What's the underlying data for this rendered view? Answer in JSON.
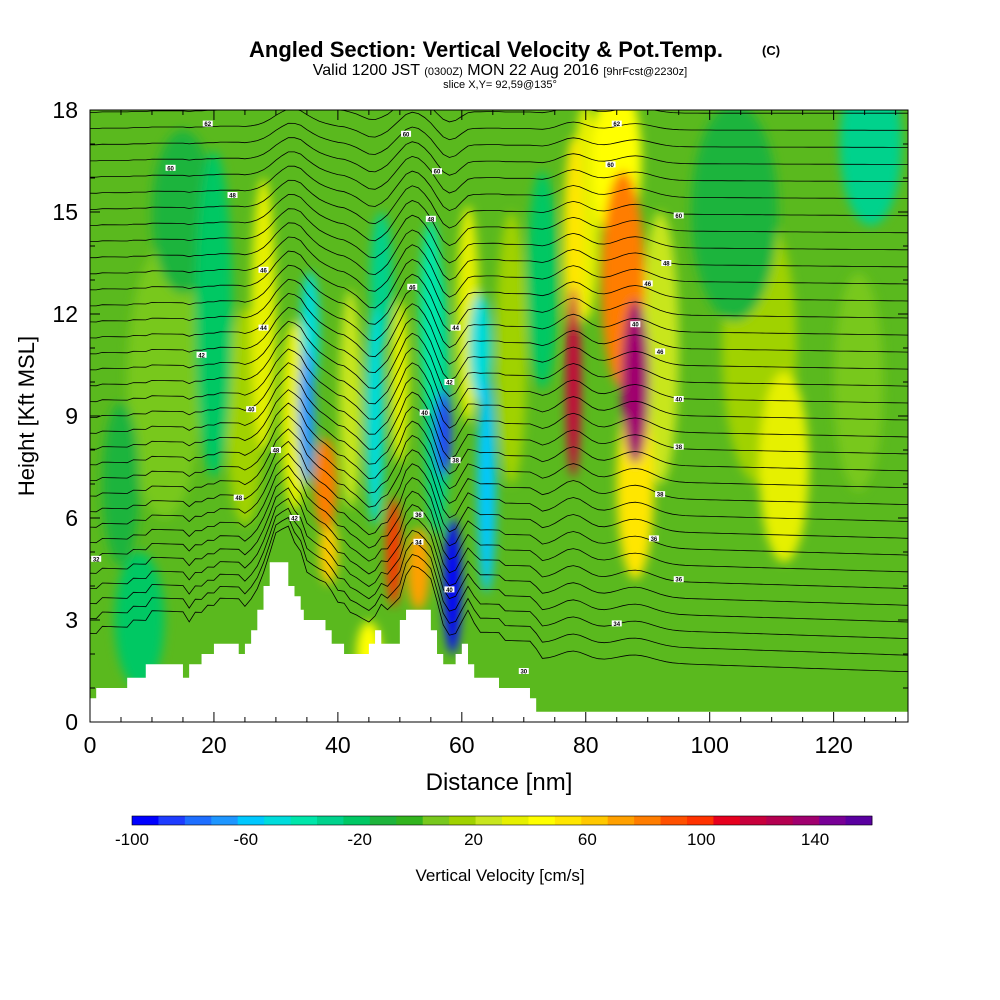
{
  "chart_data": {
    "type": "heatmap",
    "title": "Angled Section: Vertical Velocity & Pot.Temp.",
    "title_mark": "(C)",
    "subtitle_pre": "Valid 1200 JST",
    "subtitle_z": "(0300Z)",
    "subtitle_post": "MON 22 Aug 2016",
    "subtitle_fcst": "[9hrFcst@2230z]",
    "slice_label": "slice X,Y= 92,59@135°",
    "xlabel": "Distance [nm]",
    "ylabel": "Height [Kft MSL]",
    "xlim": [
      0,
      132
    ],
    "ylim": [
      0,
      18
    ],
    "x_ticks": [
      0,
      20,
      40,
      60,
      80,
      100,
      120
    ],
    "y_ticks": [
      0,
      3,
      6,
      9,
      12,
      15,
      18
    ],
    "colorbar": {
      "label": "Vertical Velocity [cm/s]",
      "min": -100,
      "max": 160,
      "ticks": [
        -100,
        -60,
        -20,
        20,
        60,
        100,
        140
      ],
      "colors": [
        "#0000ff",
        "#1e3cff",
        "#1e6eff",
        "#1e96ff",
        "#00c8ff",
        "#00dcdc",
        "#00e6aa",
        "#00d28c",
        "#00c864",
        "#1eb43c",
        "#32b41e",
        "#78c81e",
        "#a0d200",
        "#c8e61e",
        "#e6f000",
        "#ffff00",
        "#ffe600",
        "#ffc800",
        "#ffa000",
        "#ff7d00",
        "#ff5000",
        "#ff3200",
        "#e6001e",
        "#c8003c",
        "#b40050",
        "#a0006e",
        "#780096",
        "#5a00a0"
      ]
    },
    "velocity_features": [
      {
        "x": 35,
        "y": 9,
        "w": 1.3,
        "h": 2.5,
        "v": -70
      },
      {
        "x": 35.5,
        "y": 11.5,
        "w": 1.5,
        "h": 2.2,
        "v": -45
      },
      {
        "x": 33,
        "y": 9,
        "w": 2.2,
        "h": 3.5,
        "v": 35
      },
      {
        "x": 38,
        "y": 7,
        "w": 1.8,
        "h": 1.7,
        "v": 85
      },
      {
        "x": 38.5,
        "y": 5,
        "w": 1.5,
        "h": 1.2,
        "v": 60
      },
      {
        "x": 42,
        "y": 9.5,
        "w": 1.8,
        "h": 4,
        "v": 25
      },
      {
        "x": 46,
        "y": 9,
        "w": 1.5,
        "h": 4,
        "v": -50
      },
      {
        "x": 47,
        "y": 13,
        "w": 1.8,
        "h": 2.5,
        "v": -30
      },
      {
        "x": 49,
        "y": 5,
        "w": 1.2,
        "h": 2,
        "v": 95
      },
      {
        "x": 50,
        "y": 10,
        "w": 1.4,
        "h": 3,
        "v": 35
      },
      {
        "x": 53,
        "y": 4.5,
        "w": 1.8,
        "h": 1.5,
        "v": 70
      },
      {
        "x": 55,
        "y": 12,
        "w": 1.8,
        "h": 3.5,
        "v": -40
      },
      {
        "x": 57,
        "y": 8.5,
        "w": 1.3,
        "h": 1.6,
        "v": -85
      },
      {
        "x": 58.5,
        "y": 4,
        "w": 1.4,
        "h": 2.5,
        "v": -100
      },
      {
        "x": 56,
        "y": 9.5,
        "w": 2.2,
        "h": 5,
        "v": -30
      },
      {
        "x": 61,
        "y": 12,
        "w": 1.8,
        "h": 4,
        "v": 30
      },
      {
        "x": 64,
        "y": 7,
        "w": 1.5,
        "h": 4,
        "v": -60
      },
      {
        "x": 63,
        "y": 11,
        "w": 1.8,
        "h": 2,
        "v": -45
      },
      {
        "x": 68,
        "y": 11,
        "w": 2.5,
        "h": 5,
        "v": 15
      },
      {
        "x": 73,
        "y": 13,
        "w": 2.5,
        "h": 4,
        "v": -20
      },
      {
        "x": 78,
        "y": 10,
        "w": 1.2,
        "h": 3.5,
        "v": 115
      },
      {
        "x": 78,
        "y": 14,
        "w": 1.6,
        "h": 4,
        "v": 55
      },
      {
        "x": 80,
        "y": 15,
        "w": 2.2,
        "h": 4,
        "v": 35
      },
      {
        "x": 88,
        "y": 10,
        "w": 2.2,
        "h": 3,
        "v": 135
      },
      {
        "x": 86,
        "y": 13,
        "w": 3.5,
        "h": 4,
        "v": 80
      },
      {
        "x": 85,
        "y": 16.5,
        "w": 4,
        "h": 3,
        "v": 45
      },
      {
        "x": 88,
        "y": 7,
        "w": 3,
        "h": 3.5,
        "v": 55
      },
      {
        "x": 92,
        "y": 11,
        "w": 3,
        "h": 5,
        "v": 25
      },
      {
        "x": 112,
        "y": 7.5,
        "w": 4,
        "h": 3.5,
        "v": 35
      },
      {
        "x": 108,
        "y": 11,
        "w": 6,
        "h": 5,
        "v": 15
      },
      {
        "x": 104,
        "y": 15,
        "w": 7,
        "h": 4,
        "v": -15
      },
      {
        "x": 126,
        "y": 17,
        "w": 5,
        "h": 3,
        "v": -30
      },
      {
        "x": 124,
        "y": 10,
        "w": 4,
        "h": 4,
        "v": 10
      },
      {
        "x": 8,
        "y": 3,
        "w": 4,
        "h": 2.5,
        "v": -25
      },
      {
        "x": 12,
        "y": 10,
        "w": 6,
        "h": 5,
        "v": 10
      },
      {
        "x": 20,
        "y": 12,
        "w": 3,
        "h": 6,
        "v": -20
      },
      {
        "x": 25,
        "y": 9,
        "w": 3,
        "h": 4,
        "v": 15
      },
      {
        "x": 28,
        "y": 12,
        "w": 2,
        "h": 5,
        "v": 30
      },
      {
        "x": 15,
        "y": 15,
        "w": 5,
        "h": 3,
        "v": -15
      },
      {
        "x": 45,
        "y": 2,
        "w": 2,
        "h": 1.2,
        "v": 45
      },
      {
        "x": 5,
        "y": 7,
        "w": 3,
        "h": 3,
        "v": -15
      }
    ],
    "terrain": [
      [
        0,
        0.7
      ],
      [
        1,
        1
      ],
      [
        6,
        1.3
      ],
      [
        9,
        1.7
      ],
      [
        13,
        1.7
      ],
      [
        15,
        1.3
      ],
      [
        16,
        1.7
      ],
      [
        18,
        2
      ],
      [
        20,
        2.3
      ],
      [
        23,
        2.3
      ],
      [
        24,
        2
      ],
      [
        25,
        2.3
      ],
      [
        26,
        2.7
      ],
      [
        27,
        3.3
      ],
      [
        28,
        4
      ],
      [
        29,
        4.7
      ],
      [
        31,
        4.7
      ],
      [
        32,
        4
      ],
      [
        33,
        3.7
      ],
      [
        34,
        3.3
      ],
      [
        34.5,
        3
      ],
      [
        35,
        3
      ],
      [
        37,
        3
      ],
      [
        38,
        2.7
      ],
      [
        39,
        2.3
      ],
      [
        40,
        2.3
      ],
      [
        41,
        2
      ],
      [
        44,
        2
      ],
      [
        45,
        2.3
      ],
      [
        46,
        2.7
      ],
      [
        47,
        2.3
      ],
      [
        49,
        2.3
      ],
      [
        50,
        3
      ],
      [
        51,
        3.3
      ],
      [
        54,
        3.3
      ],
      [
        55,
        2.7
      ],
      [
        56,
        2
      ],
      [
        57,
        1.7
      ],
      [
        58,
        1.7
      ],
      [
        59,
        2
      ],
      [
        60,
        2.3
      ],
      [
        61,
        1.7
      ],
      [
        62,
        1.3
      ],
      [
        65,
        1.3
      ],
      [
        66,
        1
      ],
      [
        69,
        1
      ],
      [
        71,
        0.7
      ],
      [
        72,
        0.3
      ],
      [
        132,
        0.3
      ]
    ],
    "isentropes": {
      "count": 36,
      "bottom_frac": 0.07,
      "top_frac": 1.05,
      "labels": [
        {
          "x": 19,
          "y": 17.6,
          "text": "62"
        },
        {
          "x": 51,
          "y": 17.3,
          "text": "60"
        },
        {
          "x": 85,
          "y": 17.6,
          "text": "62"
        },
        {
          "x": 13,
          "y": 16.3,
          "text": "60"
        },
        {
          "x": 56,
          "y": 16.2,
          "text": "60"
        },
        {
          "x": 84,
          "y": 16.4,
          "text": "60"
        },
        {
          "x": 23,
          "y": 15.5,
          "text": "48"
        },
        {
          "x": 55,
          "y": 14.8,
          "text": "48"
        },
        {
          "x": 95,
          "y": 14.9,
          "text": "60"
        },
        {
          "x": 93,
          "y": 13.5,
          "text": "48"
        },
        {
          "x": 28,
          "y": 13.3,
          "text": "46"
        },
        {
          "x": 90,
          "y": 12.9,
          "text": "46"
        },
        {
          "x": 52,
          "y": 12.8,
          "text": "46"
        },
        {
          "x": 28,
          "y": 11.6,
          "text": "44"
        },
        {
          "x": 59,
          "y": 11.6,
          "text": "44"
        },
        {
          "x": 88,
          "y": 11.7,
          "text": "40"
        },
        {
          "x": 18,
          "y": 10.8,
          "text": "42"
        },
        {
          "x": 92,
          "y": 10.9,
          "text": "46"
        },
        {
          "x": 58,
          "y": 10,
          "text": "42"
        },
        {
          "x": 26,
          "y": 9.2,
          "text": "40"
        },
        {
          "x": 54,
          "y": 9.1,
          "text": "40"
        },
        {
          "x": 95,
          "y": 9.5,
          "text": "40"
        },
        {
          "x": 30,
          "y": 8,
          "text": "48"
        },
        {
          "x": 59,
          "y": 7.7,
          "text": "38"
        },
        {
          "x": 95,
          "y": 8.1,
          "text": "38"
        },
        {
          "x": 24,
          "y": 6.6,
          "text": "48"
        },
        {
          "x": 92,
          "y": 6.7,
          "text": "38"
        },
        {
          "x": 33,
          "y": 6,
          "text": "42"
        },
        {
          "x": 53,
          "y": 6.1,
          "text": "36"
        },
        {
          "x": 91,
          "y": 5.4,
          "text": "36"
        },
        {
          "x": 53,
          "y": 5.3,
          "text": "34"
        },
        {
          "x": 1,
          "y": 4.8,
          "text": "32"
        },
        {
          "x": 95,
          "y": 4.2,
          "text": "36"
        },
        {
          "x": 58,
          "y": 3.9,
          "text": "40"
        },
        {
          "x": 85,
          "y": 2.9,
          "text": "34"
        },
        {
          "x": 70,
          "y": 1.5,
          "text": "30"
        }
      ]
    }
  }
}
